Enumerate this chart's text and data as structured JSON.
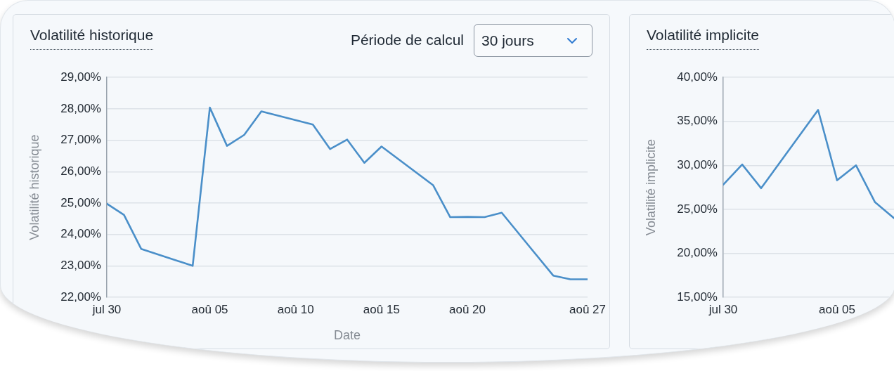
{
  "chart_data": [
    {
      "type": "line",
      "title": "Volatilité historique",
      "xlabel": "Date",
      "ylabel": "Volatilité historique",
      "annotations": [
        "Période de calcul",
        "30 jours"
      ],
      "x": [
        "--07-30",
        "--07-31",
        "--08-01",
        "--08-04",
        "--08-05",
        "--08-06",
        "--08-07",
        "--08-08",
        "--08-11",
        "--08-12",
        "--08-13",
        "--08-14",
        "--08-15",
        "--08-18",
        "--08-19",
        "--08-20",
        "--08-21",
        "--08-22",
        "--08-25",
        "--08-26",
        "--08-27"
      ],
      "values": [
        24.98,
        24.62,
        23.54,
        23.0,
        28.04,
        26.82,
        27.17,
        27.92,
        27.5,
        26.72,
        27.02,
        26.28,
        26.8,
        25.57,
        24.55,
        24.56,
        24.55,
        24.69,
        22.69,
        22.57,
        22.57
      ],
      "color": "#4a8fc9",
      "xlim": [
        "--07-30",
        "--08-27"
      ],
      "xticks": [
        {
          "value": "--07-30",
          "label": "jul 30"
        },
        {
          "value": "--08-05",
          "label": "aoû 05"
        },
        {
          "value": "--08-10",
          "label": "aoû 10"
        },
        {
          "value": "--08-15",
          "label": "aoû 15"
        },
        {
          "value": "--08-20",
          "label": "aoû 20"
        },
        {
          "value": "--08-27",
          "label": "aoû 27"
        }
      ],
      "ylim": [
        22,
        29
      ],
      "yticks": [
        {
          "value": 22,
          "label": "22,00%"
        },
        {
          "value": 23,
          "label": "23,00%"
        },
        {
          "value": 24,
          "label": "24,00%"
        },
        {
          "value": 25,
          "label": "25,00%"
        },
        {
          "value": 26,
          "label": "26,00%"
        },
        {
          "value": 27,
          "label": "27,00%"
        },
        {
          "value": 28,
          "label": "28,00%"
        },
        {
          "value": 29,
          "label": "29,00%"
        }
      ],
      "grid": "y",
      "marker": "none"
    },
    {
      "type": "line",
      "title": "Volatilité implicite",
      "ylabel": "Volatilité implicite",
      "x": [
        "--07-30",
        "--07-31",
        "--08-01",
        "--08-04",
        "--08-05",
        "--08-06",
        "--08-07",
        "--08-08"
      ],
      "values": [
        27.8,
        30.1,
        27.4,
        36.3,
        28.3,
        30.0,
        25.8,
        24.0
      ],
      "color": "#4a8fc9",
      "xlim": [
        "--07-30",
        "--08-08"
      ],
      "xticks": [
        {
          "value": "--07-30",
          "label": "jul 30"
        },
        {
          "value": "--08-05",
          "label": "aoû 05"
        }
      ],
      "ylim": [
        15,
        40
      ],
      "yticks": [
        {
          "value": 15,
          "label": "15,00%"
        },
        {
          "value": 20,
          "label": "20,00%"
        },
        {
          "value": 25,
          "label": "25,00%"
        },
        {
          "value": 30,
          "label": "30,00%"
        },
        {
          "value": 35,
          "label": "35,00%"
        },
        {
          "value": 40,
          "label": "40,00%"
        }
      ],
      "grid": "y",
      "marker": "none"
    }
  ]
}
